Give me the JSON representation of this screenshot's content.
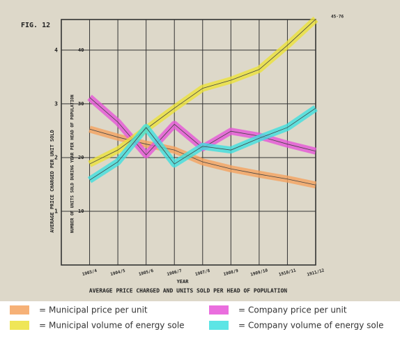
{
  "chart_data": {
    "type": "line",
    "figure_label": "FIG. 12",
    "title": "AVERAGE PRICE CHARGED AND UNITS SOLD PER HEAD OF POPULATION",
    "x_label": "YEAR",
    "y_label": "AVERAGE PRICE CHARGED PER UNIT SOLD",
    "y2_label": "NUMBER OF UNITS SOLD DURING YEAR PER HEAD OF POPULATION",
    "annotation": "45·76",
    "legend_sign": "=",
    "categories": [
      "1903/4",
      "1904/5",
      "1905/6",
      "1906/7",
      "1907/8",
      "1908/9",
      "1909/10",
      "1910/11",
      "1911/12"
    ],
    "ylim": [
      0,
      4.57
    ],
    "yticks": [
      1,
      2,
      3,
      4
    ],
    "y2lim": [
      0,
      45.7
    ],
    "y2ticks": [
      10,
      20,
      30,
      40
    ],
    "grid": true,
    "series": [
      {
        "name": "Municipal price per unit",
        "color": "#f5a35f",
        "values": [
          2.53,
          2.38,
          2.25,
          2.14,
          1.92,
          1.79,
          1.69,
          1.6,
          1.49
        ]
      },
      {
        "name": "Company price per unit",
        "color": "#e655d8",
        "values": [
          3.12,
          2.66,
          2.05,
          2.62,
          2.18,
          2.49,
          2.4,
          2.25,
          2.12
        ]
      },
      {
        "name": "Municipal volume of energy sole",
        "color": "#ece23a",
        "axis": "y2",
        "values": [
          18.8,
          21.4,
          25.3,
          29.2,
          32.9,
          34.4,
          36.4,
          40.9,
          45.76
        ]
      },
      {
        "name": "Company volume of energy sole",
        "color": "#3fe0e0",
        "axis": "y2",
        "values": [
          15.8,
          19.2,
          25.6,
          18.8,
          22.1,
          21.4,
          23.6,
          25.6,
          29.2
        ]
      }
    ]
  }
}
